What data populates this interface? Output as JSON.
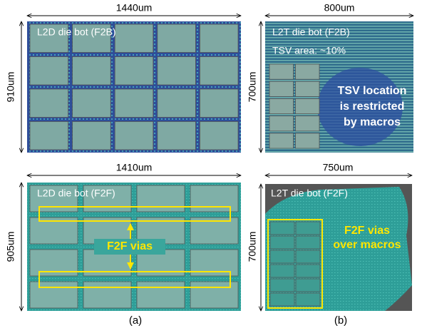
{
  "panels": [
    {
      "width_label": "1440um",
      "height_label": "910um",
      "title": "L2D die bot (F2B)"
    },
    {
      "width_label": "800um",
      "height_label": "700um",
      "title": "L2T die bot (F2B)",
      "note": "TSV area: ~10%",
      "callout": [
        "TSV location",
        "is restricted",
        "by macros"
      ]
    },
    {
      "width_label": "1410um",
      "height_label": "905um",
      "title": "L2D die bot (F2F)",
      "callout": [
        "F2F vias"
      ]
    },
    {
      "width_label": "750um",
      "height_label": "700um",
      "title": "L2T die bot (F2F)",
      "callout": [
        "F2F vias",
        "over macros"
      ]
    }
  ],
  "captions": [
    "(a)",
    "(b)"
  ]
}
